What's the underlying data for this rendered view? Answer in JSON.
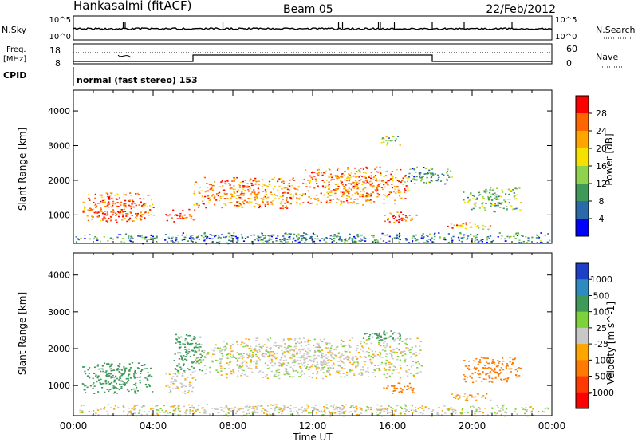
{
  "header": {
    "station": "Hankasalmi (fitACF)",
    "beam": "Beam 05",
    "date": "22/Feb/2012"
  },
  "top_panels": {
    "nsky_label": "N.Sky",
    "nsky_ticks_left": [
      "10^5",
      "10^0"
    ],
    "nsearch_label": "N.Search",
    "nsearch_ticks_right": [
      "10^5",
      "10^0"
    ],
    "freq_label": "Freq.",
    "freq_unit": "[MHz]",
    "freq_ticks_left": [
      "18",
      "8"
    ],
    "nave_label": "Nave",
    "nave_ticks_right": [
      "60",
      "0"
    ],
    "cpid_label": "CPID",
    "cpid_text": "normal (fast stereo) 153"
  },
  "x_axis": {
    "label": "Time UT",
    "ticks": [
      "00:00",
      "04:00",
      "08:00",
      "12:00",
      "16:00",
      "20:00",
      "00:00"
    ]
  },
  "power_colorbar": {
    "label": "Power [dB]",
    "ticks": [
      "28",
      "24",
      "20",
      "16",
      "12",
      "8",
      "4"
    ],
    "colors": [
      "#ff0000",
      "#ff6600",
      "#ffa500",
      "#f5e000",
      "#8fd24e",
      "#3f9a5a",
      "#2a6aa8",
      "#0000ff"
    ]
  },
  "velocity_colorbar": {
    "label": "Velocity [m s^-1]",
    "ticks": [
      "1000",
      "500",
      "100",
      "25",
      "-25",
      "-100",
      "-500",
      "-1000"
    ],
    "colors": [
      "#1e40c8",
      "#2e8bc0",
      "#3f9a5a",
      "#7cd23a",
      "#c8c8c8",
      "#ffa500",
      "#ff7a00",
      "#ff3a00",
      "#ff0000"
    ]
  },
  "chart_data": [
    {
      "type": "heatmap",
      "title": "Power",
      "xlabel": "Time UT",
      "ylabel": "Slant Range [km]",
      "xlim": [
        "00:00",
        "24:00"
      ],
      "ylim": [
        180,
        4600
      ],
      "yticks": [
        "1000",
        "2000",
        "3000",
        "4000"
      ],
      "colorbar_label": "Power [dB]",
      "colorbar_range": [
        0,
        32
      ],
      "regions": [
        {
          "t": [
            0.4,
            4.0
          ],
          "range": [
            800,
            1650
          ],
          "value": 26
        },
        {
          "t": [
            4.6,
            6.1
          ],
          "range": [
            800,
            1200
          ],
          "value": 28
        },
        {
          "t": [
            6.0,
            11.5
          ],
          "range": [
            1200,
            2100
          ],
          "value": 24
        },
        {
          "t": [
            11.5,
            16.8
          ],
          "range": [
            1300,
            2400
          ],
          "value": 24
        },
        {
          "t": [
            15.5,
            17.2
          ],
          "range": [
            800,
            1100
          ],
          "value": 28
        },
        {
          "t": [
            16.5,
            19.0
          ],
          "range": [
            1900,
            2400
          ],
          "value": 10
        },
        {
          "t": [
            18.7,
            21.0
          ],
          "range": [
            600,
            800
          ],
          "value": 22
        },
        {
          "t": [
            19.5,
            22.5
          ],
          "range": [
            1100,
            1800
          ],
          "value": 12
        },
        {
          "t": [
            0.0,
            24.0
          ],
          "range": [
            180,
            500
          ],
          "value": 8
        },
        {
          "t": [
            15.2,
            16.4
          ],
          "range": [
            3000,
            3300
          ],
          "value": 14
        }
      ]
    },
    {
      "type": "heatmap",
      "title": "Velocity",
      "xlabel": "Time UT",
      "ylabel": "Slant Range [km]",
      "xlim": [
        "00:00",
        "24:00"
      ],
      "ylim": [
        180,
        4600
      ],
      "yticks": [
        "1000",
        "2000",
        "3000",
        "4000"
      ],
      "colorbar_label": "Velocity [m s^-1]",
      "colorbar_range": [
        -1000,
        1000
      ],
      "regions": [
        {
          "t": [
            0.4,
            4.0
          ],
          "range": [
            800,
            1650
          ],
          "value": 200
        },
        {
          "t": [
            4.6,
            6.1
          ],
          "range": [
            800,
            1400
          ],
          "value": 0
        },
        {
          "t": [
            5.0,
            6.5
          ],
          "range": [
            1400,
            2400
          ],
          "value": 120
        },
        {
          "t": [
            6.0,
            17.5
          ],
          "range": [
            1200,
            2300
          ],
          "value": 0
        },
        {
          "t": [
            15.5,
            17.2
          ],
          "range": [
            800,
            1100
          ],
          "value": -150
        },
        {
          "t": [
            18.7,
            21.0
          ],
          "range": [
            600,
            800
          ],
          "value": -50
        },
        {
          "t": [
            19.5,
            22.5
          ],
          "range": [
            1100,
            1800
          ],
          "value": -150
        },
        {
          "t": [
            14.5,
            16.5
          ],
          "range": [
            2200,
            2500
          ],
          "value": 150
        },
        {
          "t": [
            0.0,
            24.0
          ],
          "range": [
            180,
            500
          ],
          "value": 0
        }
      ]
    }
  ]
}
